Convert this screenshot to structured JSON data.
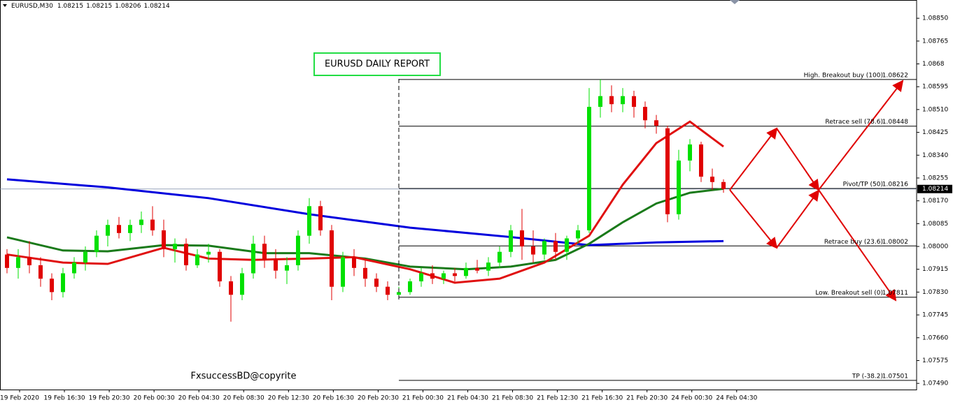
{
  "chart_data": {
    "type": "candlestick",
    "symbol": "EURUSD,M30",
    "ohlc": [
      1.08215,
      1.08215,
      1.08206,
      1.08214
    ],
    "title": "EURUSD DAILY REPORT",
    "watermark": "FxsuccessBD@copyrite",
    "x_labels": [
      "19 Feb 2020",
      "19 Feb 16:30",
      "19 Feb 20:30",
      "20 Feb 00:30",
      "20 Feb 04:30",
      "20 Feb 08:30",
      "20 Feb 12:30",
      "20 Feb 16:30",
      "20 Feb 20:30",
      "21 Feb 00:30",
      "21 Feb 04:30",
      "21 Feb 08:30",
      "21 Feb 12:30",
      "21 Feb 16:30",
      "21 Feb 20:30",
      "24 Feb 00:30",
      "24 Feb 04:30"
    ],
    "up_color": "#00e000",
    "down_color": "#e00000",
    "candles": [
      [
        1.0797,
        1.0799,
        1.079,
        1.0792
      ],
      [
        1.0792,
        1.0799,
        1.0788,
        1.0796
      ],
      [
        1.0796,
        1.0802,
        1.079,
        1.0793
      ],
      [
        1.0793,
        1.0796,
        1.0785,
        1.0788
      ],
      [
        1.0788,
        1.079,
        1.078,
        1.0783
      ],
      [
        1.0783,
        1.0792,
        1.0781,
        1.079
      ],
      [
        1.079,
        1.0796,
        1.0788,
        1.0794
      ],
      [
        1.0794,
        1.08,
        1.0791,
        1.0798
      ],
      [
        1.0798,
        1.0806,
        1.0796,
        1.0804
      ],
      [
        1.0804,
        1.081,
        1.08,
        1.0808
      ],
      [
        1.0808,
        1.0811,
        1.0803,
        1.0805
      ],
      [
        1.0805,
        1.081,
        1.0802,
        1.0808
      ],
      [
        1.0808,
        1.0813,
        1.0805,
        1.081
      ],
      [
        1.081,
        1.0815,
        1.0804,
        1.0806
      ],
      [
        1.0806,
        1.081,
        1.0796,
        1.0799
      ],
      [
        1.0799,
        1.0803,
        1.0794,
        1.0801
      ],
      [
        1.0801,
        1.0803,
        1.0791,
        1.0793
      ],
      [
        1.0793,
        1.0799,
        1.0792,
        1.0797
      ],
      [
        1.0797,
        1.0801,
        1.0794,
        1.0798
      ],
      [
        1.0798,
        1.0799,
        1.0785,
        1.0787
      ],
      [
        1.0787,
        1.0789,
        1.0772,
        1.0782
      ],
      [
        1.0782,
        1.0792,
        1.078,
        1.079
      ],
      [
        1.079,
        1.0804,
        1.0788,
        1.0801
      ],
      [
        1.0801,
        1.0804,
        1.0792,
        1.0795
      ],
      [
        1.0795,
        1.0799,
        1.0788,
        1.0791
      ],
      [
        1.0791,
        1.0796,
        1.0786,
        1.0793
      ],
      [
        1.0793,
        1.0806,
        1.0791,
        1.0804
      ],
      [
        1.0804,
        1.0818,
        1.0801,
        1.0815
      ],
      [
        1.0815,
        1.0817,
        1.0804,
        1.0806
      ],
      [
        1.0806,
        1.0808,
        1.078,
        1.0785
      ],
      [
        1.0785,
        1.0798,
        1.0783,
        1.0796
      ],
      [
        1.0796,
        1.0799,
        1.0789,
        1.0792
      ],
      [
        1.0792,
        1.0795,
        1.0785,
        1.0788
      ],
      [
        1.0788,
        1.079,
        1.0783,
        1.0785
      ],
      [
        1.0785,
        1.0787,
        1.078,
        1.0782
      ],
      [
        1.0782,
        1.0785,
        1.0781,
        1.0783
      ],
      [
        1.0783,
        1.0788,
        1.0782,
        1.0787
      ],
      [
        1.0787,
        1.0792,
        1.0785,
        1.079
      ],
      [
        1.079,
        1.0793,
        1.0786,
        1.0788
      ],
      [
        1.0788,
        1.0791,
        1.0786,
        1.079
      ],
      [
        1.079,
        1.0792,
        1.0787,
        1.0789
      ],
      [
        1.0789,
        1.0794,
        1.0788,
        1.0792
      ],
      [
        1.0792,
        1.0795,
        1.079,
        1.0791
      ],
      [
        1.0791,
        1.0796,
        1.0789,
        1.0794
      ],
      [
        1.0794,
        1.08,
        1.0792,
        1.0798
      ],
      [
        1.0798,
        1.0808,
        1.0796,
        1.0806
      ],
      [
        1.0806,
        1.0814,
        1.0795,
        1.08
      ],
      [
        1.08,
        1.0806,
        1.0794,
        1.0797
      ],
      [
        1.0797,
        1.0803,
        1.0795,
        1.0802
      ],
      [
        1.0802,
        1.0805,
        1.0795,
        1.0798
      ],
      [
        1.0798,
        1.0804,
        1.0795,
        1.0803
      ],
      [
        1.0803,
        1.0808,
        1.0801,
        1.0806
      ],
      [
        1.0806,
        1.0859,
        1.0805,
        1.0852
      ],
      [
        1.0852,
        1.08622,
        1.0848,
        1.0856
      ],
      [
        1.0856,
        1.086,
        1.085,
        1.0853
      ],
      [
        1.0853,
        1.0859,
        1.085,
        1.0856
      ],
      [
        1.0856,
        1.0858,
        1.0848,
        1.0852
      ],
      [
        1.0852,
        1.0854,
        1.0844,
        1.0847
      ],
      [
        1.0847,
        1.0849,
        1.0842,
        1.0845
      ],
      [
        1.0844,
        1.0845,
        1.0809,
        1.0812
      ],
      [
        1.0812,
        1.0836,
        1.081,
        1.0832
      ],
      [
        1.0832,
        1.084,
        1.0828,
        1.0838
      ],
      [
        1.0838,
        1.0839,
        1.0824,
        1.0826
      ],
      [
        1.0826,
        1.0829,
        1.0821,
        1.0824
      ],
      [
        1.0824,
        1.0825,
        1.082,
        1.08214
      ]
    ],
    "moving_averages": [
      {
        "color": "#0000dd",
        "x": [
          0,
          9,
          18,
          27,
          36,
          45,
          52,
          58,
          64
        ],
        "values": [
          1.0825,
          1.0822,
          1.0818,
          1.0812,
          1.0807,
          1.08035,
          1.08005,
          1.08015,
          1.0802
        ]
      },
      {
        "color": "#1a7a1a",
        "x": [
          0,
          5,
          9,
          14,
          18,
          23,
          27,
          32,
          36,
          41,
          45,
          49,
          52,
          55,
          58,
          61,
          64
        ],
        "values": [
          1.08034,
          1.07985,
          1.07982,
          1.08005,
          1.08003,
          1.07975,
          1.07975,
          1.07955,
          1.07925,
          1.07915,
          1.07925,
          1.0795,
          1.0801,
          1.0809,
          1.0816,
          1.082,
          1.08215
        ]
      },
      {
        "color": "#e01010",
        "x": [
          0,
          5,
          9,
          14,
          18,
          22,
          27,
          31,
          36,
          40,
          44,
          48,
          52,
          55,
          58,
          61,
          64
        ],
        "values": [
          1.0797,
          1.0794,
          1.07935,
          1.07995,
          1.07955,
          1.0795,
          1.07955,
          1.0796,
          1.07915,
          1.07865,
          1.0788,
          1.0794,
          1.0804,
          1.0823,
          1.08385,
          1.08465,
          1.08372
        ]
      }
    ],
    "levels": [
      {
        "label": "High. Breakout buy (100)",
        "value": 1.08622
      },
      {
        "label": "Retrace sell (78.6)",
        "value": 1.08448
      },
      {
        "label": "Pivot/TP (50)",
        "value": 1.08216
      },
      {
        "label": "Retrace buy (23.6)",
        "value": 1.08002
      },
      {
        "label": "Low. Breakout sell (0)",
        "value": 1.07811
      },
      {
        "label": "TP (-38.2)",
        "value": 1.07501
      }
    ],
    "current_price": 1.08214,
    "ylim": [
      1.07467,
      1.08918
    ],
    "yticks": [
      {
        "value": 1.0885,
        "label": "1.08850"
      },
      1.08765,
      1.0868,
      1.08595,
      {
        "value": 1.0851,
        "label": "1.08510"
      },
      1.08425,
      {
        "value": 1.0834,
        "label": "1.08340"
      },
      1.08255,
      {
        "value": 1.0817,
        "label": "1.08170"
      },
      1.08085,
      {
        "value": 1.08,
        "label": "1.08000"
      },
      1.07915,
      {
        "value": 1.0783,
        "label": "1.07830"
      },
      1.07745,
      {
        "value": 1.0766,
        "label": "1.07660"
      },
      1.07575,
      {
        "value": 1.0749,
        "label": "1.07490"
      }
    ]
  }
}
